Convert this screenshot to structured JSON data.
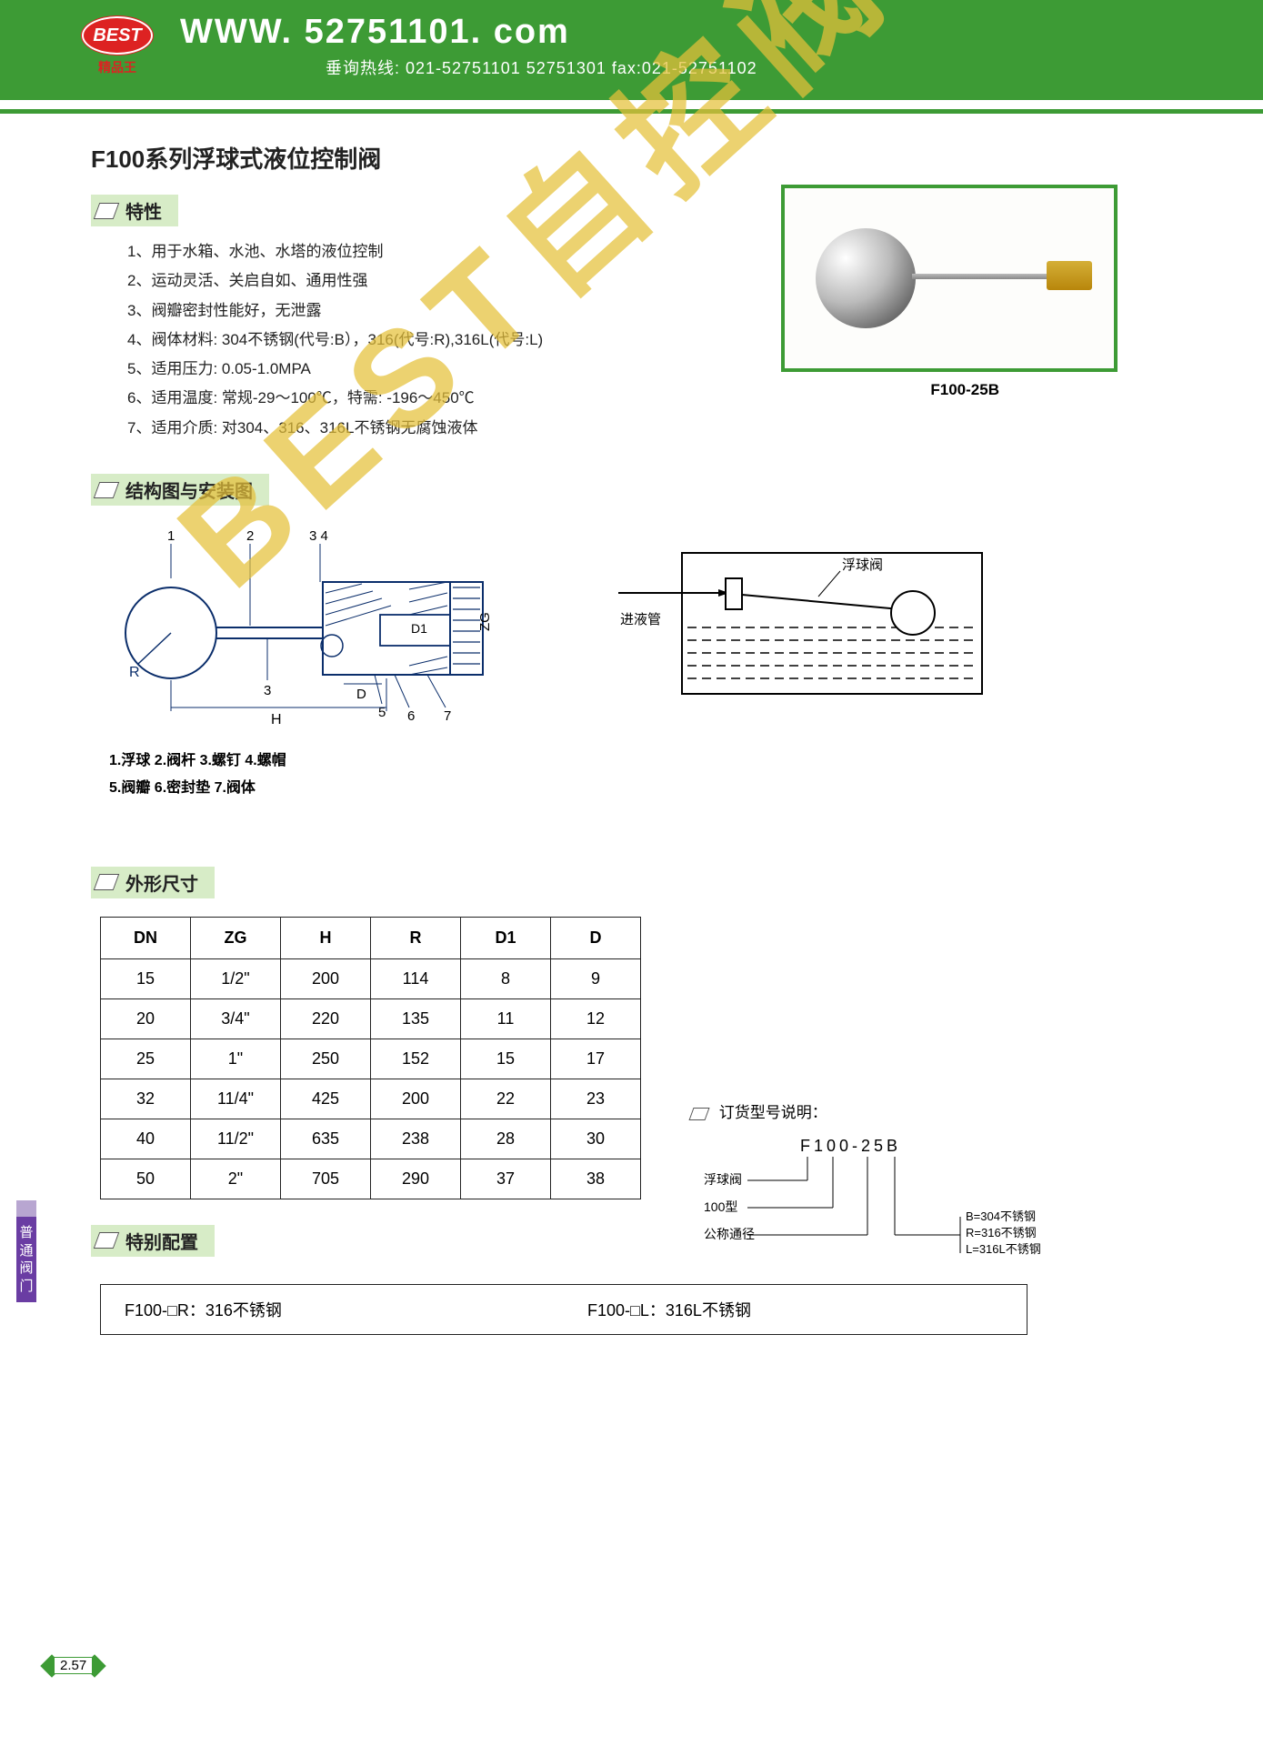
{
  "header": {
    "logo_text": "BEST",
    "logo_sub": "精品王",
    "url": "WWW. 52751101. com",
    "contact": "垂询热线: 021-52751101  52751301    fax:021-52751102"
  },
  "page_title": "F100系列浮球式液位控制阀",
  "sections": {
    "features": "特性",
    "structure": "结构图与安装图",
    "dimensions": "外形尺寸",
    "special": "特别配置"
  },
  "features_list": [
    "1、用于水箱、水池、水塔的液位控制",
    "2、运动灵活、关启自如、通用性强",
    "3、阀瓣密封性能好，无泄露",
    "4、阀体材料: 304不锈钢(代号:B），316(代号:R),316L(代号:L)",
    "5、适用压力: 0.05-1.0MPA",
    "6、适用温度: 常规-29～100℃，特需: -196～450℃",
    "7、适用介质: 对304、316、316L不锈钢无腐蚀液体"
  ],
  "product_caption": "F100-25B",
  "structure_diagram": {
    "callouts": [
      "1",
      "2",
      "3 4",
      "3",
      "5",
      "6",
      "7"
    ],
    "dims": [
      "R",
      "H",
      "D",
      "D1",
      "ZG"
    ]
  },
  "install_diagram": {
    "labels": {
      "float_valve": "浮球阀",
      "inlet": "进液管"
    }
  },
  "parts_legend": {
    "row1": "1.浮球    2.阀杆    3.螺钉    4.螺帽",
    "row2": "5.阀瓣    6.密封垫   7.阀体"
  },
  "dim_table": {
    "columns": [
      "DN",
      "ZG",
      "H",
      "R",
      "D1",
      "D"
    ],
    "rows": [
      [
        "15",
        "1/2\"",
        "200",
        "114",
        "8",
        "9"
      ],
      [
        "20",
        "3/4\"",
        "220",
        "135",
        "11",
        "12"
      ],
      [
        "25",
        "1\"",
        "250",
        "152",
        "15",
        "17"
      ],
      [
        "32",
        "11/4\"",
        "425",
        "200",
        "22",
        "23"
      ],
      [
        "40",
        "11/2\"",
        "635",
        "238",
        "28",
        "30"
      ],
      [
        "50",
        "2\"",
        "705",
        "290",
        "37",
        "38"
      ]
    ]
  },
  "order_explain": {
    "title": "订货型号说明：",
    "example": "F100-25B",
    "lines": [
      "浮球阀",
      "100型",
      "公称通径"
    ],
    "notes": [
      "B=304不锈钢",
      "R=316不锈钢",
      "L=316L不锈钢"
    ]
  },
  "special_config": {
    "left": "F100-□R：316不锈钢",
    "right": "F100-□L：316L不锈钢"
  },
  "side_tab": "普通阀门",
  "page_number": "2.57",
  "watermark": "BEST自控阀业",
  "colors": {
    "header_green": "#3d9b35",
    "tag_bg": "#d7ecc7",
    "logo_red": "#d22",
    "watermark": "#e6c13a",
    "sidebar": "#6a3da3"
  }
}
